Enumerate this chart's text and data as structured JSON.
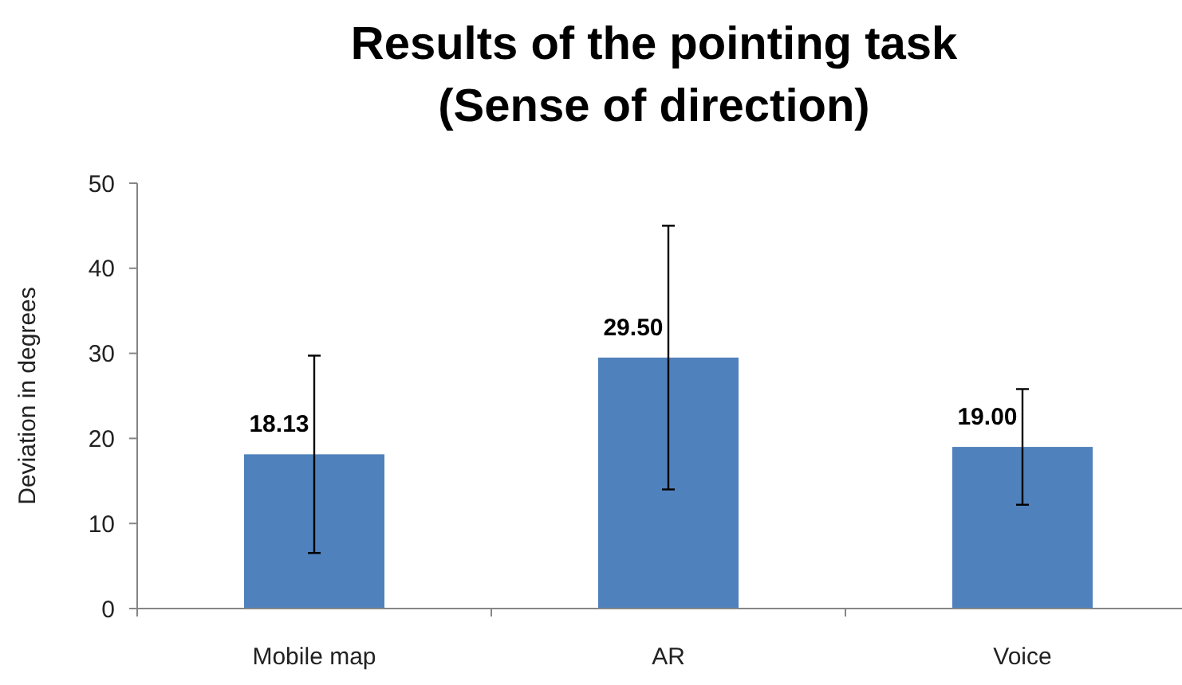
{
  "chart_data": {
    "type": "bar",
    "title": "Results of the pointing task\n(Sense of direction)",
    "ylabel": "Deviation in degrees",
    "categories": [
      "Mobile map",
      "AR",
      "Voice"
    ],
    "values": [
      18.13,
      29.5,
      19.0
    ],
    "value_labels": [
      "18.13",
      "29.50",
      "19.00"
    ],
    "errors": [
      11.6,
      15.5,
      6.8
    ],
    "color": "#4f81bd",
    "ylim": [
      0,
      50
    ],
    "yticks": [
      0,
      10,
      20,
      30,
      40,
      50
    ],
    "grid": false
  }
}
